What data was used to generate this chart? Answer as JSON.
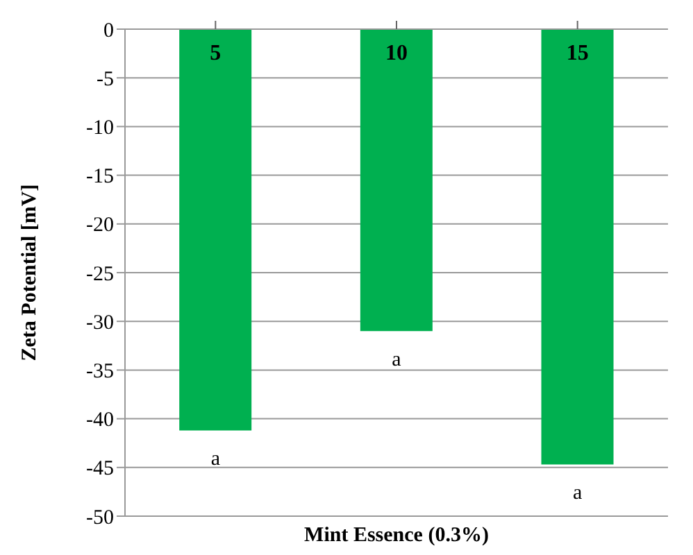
{
  "chart_data": {
    "type": "bar",
    "xlabel": "Mint Essence (0.3%)",
    "ylabel": "Zeta Potential [mV]",
    "categories": [
      "5",
      "10",
      "15"
    ],
    "values": [
      -41.2,
      -31,
      -44.7
    ],
    "color": "#00b050",
    "ylim": [
      -50,
      0
    ],
    "yticks": [
      0,
      -5,
      -10,
      -15,
      -20,
      -25,
      -30,
      -35,
      -40,
      -45,
      -50
    ],
    "grid": "y",
    "annotations": [
      "a",
      "a",
      "a"
    ]
  }
}
